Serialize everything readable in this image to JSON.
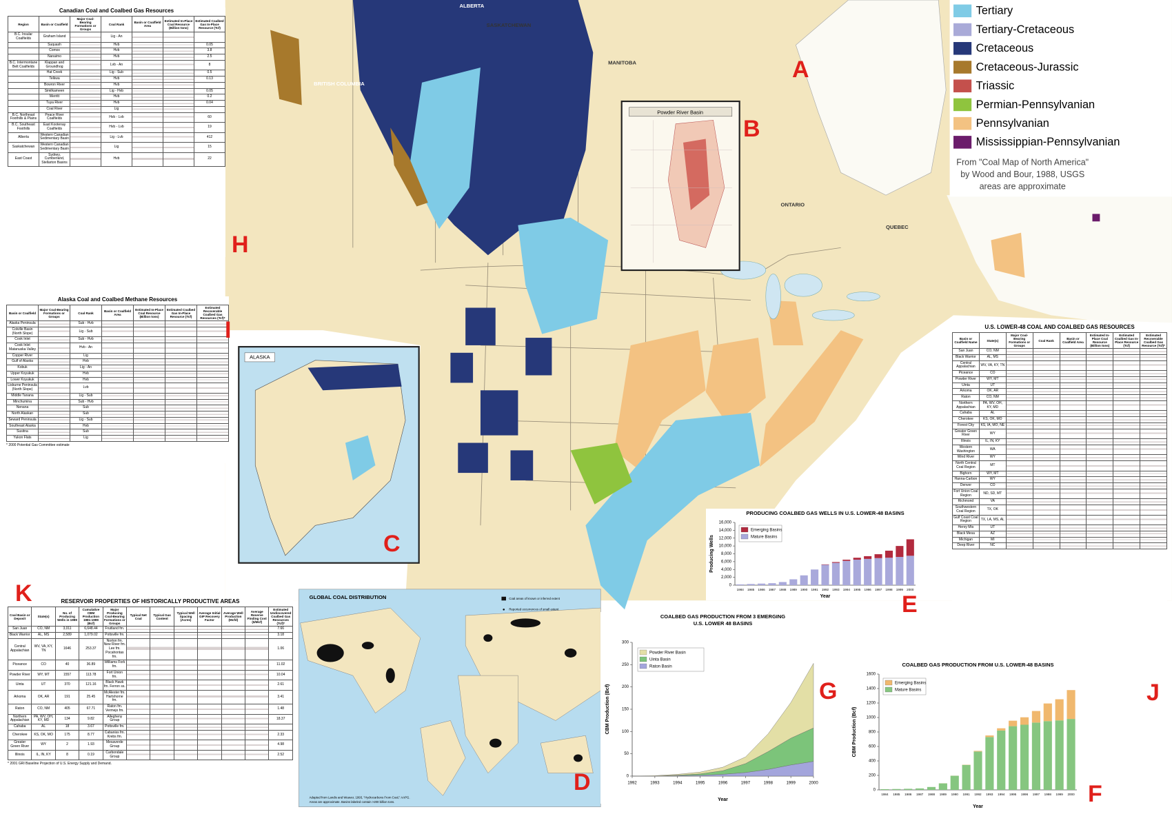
{
  "map": {
    "letters": [
      "A",
      "B",
      "C",
      "D",
      "E",
      "F",
      "G",
      "H",
      "I",
      "J",
      "K"
    ],
    "regions": [
      "ALBERTA",
      "SASKATCHEWAN",
      "MANITOBA",
      "BRITISH COLUMBIA",
      "ONTARIO",
      "QUEBEC"
    ],
    "insets": {
      "powder_river": "Powder River Basin",
      "alaska": "ALASKA"
    }
  },
  "legend": {
    "items": [
      {
        "name": "Tertiary",
        "color": "#7fcbe6"
      },
      {
        "name": "Tertiary-Cretaceous",
        "color": "#a9aad8"
      },
      {
        "name": "Cretaceous",
        "color": "#263879"
      },
      {
        "name": "Cretaceous-Jurassic",
        "color": "#a7792c"
      },
      {
        "name": "Triassic",
        "color": "#c4504c"
      },
      {
        "name": "Permian-Pennsylvanian",
        "color": "#8fc43e"
      },
      {
        "name": "Pennsylvanian",
        "color": "#f3c282"
      },
      {
        "name": "Mississippian-Pennsylvanian",
        "color": "#6b1c6b"
      }
    ],
    "credit": [
      "From \"Coal Map of North America\"",
      "by Wood and Bour, 1988, USGS",
      "areas are approximate"
    ]
  },
  "global_map": {
    "title": "GLOBAL COAL DISTRIBUTION",
    "key": [
      "Coal areas of known or inferred extent",
      "Reported occurrences of small extent"
    ],
    "credit": [
      "Adapted from Landis and Weaver, 1993, \"Hydrocarbons From Coal,\" AAPG.",
      "Areas are approximate. Basins labeled contain >200 billion tons."
    ]
  },
  "tables": [
    {
      "title": "Canadian Coal and Coalbed Gas Resources",
      "headers": [
        "Region",
        "Basin or Coalfield",
        "Major Coal-Bearing Formations or Groups",
        "Coal Rank",
        "Basin or Coalfield Area",
        "Estimated In-Place Coal Resource (Billion tons)",
        "Estimated Coalbed Gas In-Place Resource (Tcf)"
      ],
      "rows": [
        [
          "B.C. Insular Coalfields",
          "Graham Island",
          "Lig - An",
          null
        ],
        [
          null,
          "Suquash",
          "Hvb",
          "0.05"
        ],
        [
          null,
          "Comox",
          "Hvb",
          "3.8"
        ],
        [
          null,
          "Nanaimo",
          "Hvb",
          "2.5"
        ],
        [
          "B.C. Intermontane Belt Coalfields",
          "Klappan and Groundhog",
          "Lvb - An",
          "8"
        ],
        [
          null,
          "Hat Creek",
          "Lig - Sub",
          "0.5"
        ],
        [
          null,
          "Telkwa",
          "Hvb",
          "0.13"
        ],
        [
          null,
          "Bowron River",
          "Hvb",
          null
        ],
        [
          null,
          "Similkameen",
          "Lig - Hvb",
          "0.05"
        ],
        [
          null,
          "Merritt",
          "Hvb",
          "0.2"
        ],
        [
          null,
          "Tuya River",
          "Hvb",
          "0.04"
        ],
        [
          null,
          "Coal River",
          "Lig",
          null
        ],
        [
          "B.C. Northeast Foothills & Plains",
          "Peace River Coalfields",
          "Hvb - Lvb",
          "60"
        ],
        [
          "B.C. Southeast Foothills",
          "East Kootenay Coalfields",
          "Hvb - Lvb",
          "19"
        ],
        [
          "Alberta",
          "Western Canadian Sedimentary Basin",
          "Lig - Lvb",
          "412"
        ],
        [
          "Saskatchewan",
          "Western Canadian Sedimentary Basin",
          "Lig",
          "15"
        ],
        [
          "East Coast",
          "Sydney, Cumberland, Stellarton Basins",
          "Hvb",
          "22"
        ]
      ]
    },
    {
      "title": "Alaska Coal and Coalbed Methane Resources",
      "headers": [
        "Basin or Coalfield",
        "Major Coal-Bearing Formations or Groups",
        "Coal Rank",
        "Basin or Coalfield Area",
        "Estimated In-Place Coal Resource (Billion tons)",
        "Estimated Coalbed Gas In-Place Resource (Tcf)",
        "Estimated Recoverable Coalbed Gas Resources (Tcf)*"
      ],
      "rows": [
        [
          "Alaska Peninsula",
          "Sub - Hvb"
        ],
        [
          "Colville Basin (North Slope)",
          "Lig - Sub"
        ],
        [
          "Cook Inlet",
          "Sub - Hvb"
        ],
        [
          "Cook Inlet Matanuska Valley",
          "Hvb - An"
        ],
        [
          "Copper River",
          "Lig"
        ],
        [
          "Gulf of Alaska",
          "Hvb"
        ],
        [
          "Kobuk",
          "Lig - An"
        ],
        [
          "Upper Koyukuk",
          "Hvb"
        ],
        [
          "Lower Koyukuk",
          "Hvb"
        ],
        [
          "Lisburne Peninsula (North Slope)",
          "Lvb"
        ],
        [
          "Middle Tanana",
          "Lig - Sub"
        ],
        [
          "Minchumina",
          "Sub - Hvb"
        ],
        [
          "Nenana",
          "Sub"
        ],
        [
          "North Alaskan",
          "Sub"
        ],
        [
          "Seward Peninsula",
          "Lig - Sub"
        ],
        [
          "Southeast Alaska",
          "Hvb"
        ],
        [
          "Susitna",
          "Sub"
        ],
        [
          "Yukon Flats",
          "Lig"
        ]
      ],
      "footnote": "* 2000 Potential Gas Committee estimate"
    },
    {
      "title": "RESERVOIR PROPERTIES OF HISTORICALLY PRODUCTIVE AREAS",
      "headers": [
        "Coal Basin or Deposit",
        "State(s)",
        "No. of Producing Wells in 1999",
        "Cumulative CBM Production 1981-1999 (Bcf)",
        "Major Producing Coal-Bearing Formations or Groups",
        "Typical Net Coal",
        "Typical Gas Content",
        "Typical Well Spacing (Acres)",
        "Average Initial GIP Recovery Factor",
        "Average Well Production (Mcfd)",
        "Average Reserve Finding Cost ($/Mcf)",
        "Estimated Undiscovered Coalbed Gas Resources (Tcf)*"
      ],
      "rows": [
        [
          "San Juan",
          "CO, NM",
          "3,011",
          "6,648.44",
          "Fruitland fm.",
          "7.66"
        ],
        [
          "Black Warrior",
          "AL, MS",
          "2,589",
          "1,079.02",
          "Pottsville fm.",
          "3.18"
        ],
        [
          "Central Appalachian",
          "WV, VA, KY, TN",
          "1646",
          "253.37",
          "Norton fm. New River fm. Lee fm. Pocahontas fm.",
          "1.06"
        ],
        [
          "Piceance",
          "CO",
          "40",
          "36.89",
          "Williams Fork fm.",
          "11.02"
        ],
        [
          "Powder River",
          "WY, MT",
          "1557",
          "113.78",
          "Fort Union fm.",
          "10.04"
        ],
        [
          "Uinta",
          "UT",
          "370",
          "121.16",
          "Black Hawk fm. Ferron ss.",
          "2.61"
        ],
        [
          "Arkoma",
          "OK, AR",
          "191",
          "25.45",
          "McAlester fm. Hartshorne fm.",
          "3.41"
        ],
        [
          "Raton",
          "CO, NM",
          "405",
          "67.71",
          "Raton fm. Vermejo fm.",
          "1.48"
        ],
        [
          "Northern Appalachian",
          "PA, WV, OH, KY, MD",
          "134",
          "9.82",
          "Allegheny Group",
          "18.37"
        ],
        [
          "Cahaba",
          "AL",
          "18",
          "3.67",
          "Pottsville fm.",
          null
        ],
        [
          "Cherokee",
          "KS, OK, MO",
          "175",
          "8.77",
          "Cabaniss fm. Krebs fm.",
          "2.33"
        ],
        [
          "Greater Green River",
          "WY",
          "2",
          "1.93",
          "Mesaverde Group",
          "4.98"
        ],
        [
          "Illinois",
          "IL, IN, KY",
          "8",
          "0.19",
          "Carbondale Group",
          "2.52"
        ]
      ],
      "footnote": "* 2001 GRI Baseline Projection of U.S. Energy Supply and Demand."
    },
    {
      "title": "U.S. LOWER-48 COAL AND COALBED GAS RESOURCES",
      "headers": [
        "Basin or Coalfield Name",
        "State(s)",
        "Major Coal-Bearing Formations or Groups",
        "Coal Rank",
        "Basin or Coalfield Area",
        "Estimated In-Place Coal Resource (Billion tons)",
        "Estimated Coalbed Gas In-Place Resource (Tcf)",
        "Estimated Recoverable Coalbed Gas Resource (Tcf)*"
      ],
      "rows": [
        [
          "San Juan",
          "CO, NM"
        ],
        [
          "Black Warrior",
          "AL, MS"
        ],
        [
          "Central Appalachian",
          "WV, VA, KY, TN"
        ],
        [
          "Piceance",
          "CO"
        ],
        [
          "Powder River",
          "WY, MT"
        ],
        [
          "Uinta",
          "UT"
        ],
        [
          "Arkoma",
          "OK, AR"
        ],
        [
          "Raton",
          "CO, NM"
        ],
        [
          "Northern Appalachian",
          "PA, WV, OH, KY, MD"
        ],
        [
          "Cahaba",
          "AL"
        ],
        [
          "Cherokee",
          "KS, OK, MO"
        ],
        [
          "Forest City",
          "KS, IA, MO, NE"
        ],
        [
          "Greater Green River",
          "WY"
        ],
        [
          "Illinois",
          "IL, IN, KY"
        ],
        [
          "Western Washington",
          "WA"
        ],
        [
          "Wind River",
          "WY"
        ],
        [
          "North Central Coal Region",
          "MT"
        ],
        [
          "Bighorn",
          "WY, MT"
        ],
        [
          "Hanna-Carbon",
          "WY"
        ],
        [
          "Denver",
          "CO"
        ],
        [
          "Fort Union Coal Region",
          "ND, SD, MT"
        ],
        [
          "Richmond",
          "VA"
        ],
        [
          "Southwestern Coal Region",
          "TX, OK"
        ],
        [
          "Gulf Coast Coal Region",
          "TX, LA, MS, AL"
        ],
        [
          "Henry Mts",
          "UT"
        ],
        [
          "Black Mesa",
          "AZ"
        ],
        [
          "Michigan",
          "MI"
        ],
        [
          "Deep River",
          "NC"
        ]
      ]
    }
  ],
  "chart_data": [
    {
      "type": "bar",
      "title": [
        "PRODUCING COALBED GAS WELLS IN U.S. LOWER-48 BASINS"
      ],
      "x_label": "Year",
      "y_label": "Producing Wells",
      "categories": [
        "1984",
        "1985",
        "1986",
        "1987",
        "1988",
        "1989",
        "1990",
        "1991",
        "1992",
        "1993",
        "1994",
        "1995",
        "1996",
        "1997",
        "1998",
        "1999",
        "2000"
      ],
      "series": [
        {
          "name": "Emerging Basins",
          "color": "#b22a3e",
          "values": [
            0,
            0,
            0,
            0,
            0,
            0,
            0,
            0,
            100,
            200,
            300,
            500,
            700,
            1000,
            1800,
            2800,
            4200
          ]
        },
        {
          "name": "Mature Basins",
          "color": "#a9a9db",
          "values": [
            200,
            300,
            400,
            500,
            800,
            1500,
            2500,
            4000,
            5200,
            5700,
            6200,
            6500,
            6700,
            6900,
            7000,
            7200,
            7500
          ]
        }
      ],
      "ylim": [
        0,
        16000
      ],
      "yticks": [
        0,
        {
          "value": 2000,
          "label": "2,000"
        },
        {
          "value": 4000,
          "label": "4,000"
        },
        {
          "value": 6000,
          "label": "6,000"
        },
        {
          "value": 8000,
          "label": "8,000"
        },
        {
          "value": 10000,
          "label": "10,000"
        },
        {
          "value": 12000,
          "label": "12,000"
        },
        {
          "value": 14000,
          "label": "14,000"
        },
        {
          "value": 16000,
          "label": "16,000"
        }
      ],
      "stacked": true,
      "grid": false
    },
    {
      "type": "area",
      "title": [
        "COALBED GAS PRODUCTION FROM 3 EMERGING",
        "U.S. LOWER 48 BASINS"
      ],
      "x_label": "Year",
      "y_label": "CBM Production (Bcf)",
      "x": [
        1992,
        1993,
        1994,
        1995,
        1996,
        1997,
        1998,
        1999,
        2000
      ],
      "series": [
        {
          "name": "Powder River Basin",
          "color": "#e3dfa6",
          "values": [
            0,
            1,
            2,
            4,
            8,
            15,
            40,
            80,
            145
          ]
        },
        {
          "name": "Uinta Basin",
          "color": "#7cc47a",
          "values": [
            0,
            0,
            1,
            3,
            8,
            20,
            40,
            60,
            75
          ]
        },
        {
          "name": "Raton Basin",
          "color": "#a3a5dc",
          "values": [
            0,
            0,
            1,
            2,
            4,
            8,
            15,
            25,
            33
          ]
        }
      ],
      "xlim": [
        1992,
        2000
      ],
      "xticks": [
        1992,
        1993,
        1994,
        1995,
        1996,
        1997,
        1998,
        1999,
        2000
      ],
      "ylim": [
        0,
        300
      ],
      "yticks": [
        0,
        50,
        100,
        150,
        200,
        250,
        300
      ],
      "stacked": true,
      "grid": false
    },
    {
      "type": "bar",
      "title": [
        "COALBED GAS PRODUCTION FROM U.S. LOWER-48 BASINS"
      ],
      "x_label": "Year",
      "y_label": "CBM Production (Bcf)",
      "categories": [
        "1984",
        "1985",
        "1986",
        "1987",
        "1988",
        "1989",
        "1990",
        "1991",
        "1992",
        "1993",
        "1994",
        "1995",
        "1996",
        "1997",
        "1998",
        "1999",
        "2000"
      ],
      "series": [
        {
          "name": "Emerging Basins",
          "color": "#f0b86e",
          "values": [
            0,
            0,
            0,
            0,
            0,
            1,
            1,
            3,
            9,
            22,
            31,
            76,
            103,
            160,
            244,
            292,
            399
          ]
        },
        {
          "name": "Mature Basins",
          "color": "#86c680",
          "values": [
            10,
            12,
            15,
            20,
            40,
            90,
            195,
            345,
            530,
            730,
            820,
            880,
            900,
            930,
            950,
            960,
            980
          ]
        }
      ],
      "ylim": [
        0,
        1600
      ],
      "yticks": [
        0,
        200,
        400,
        600,
        800,
        1000,
        1200,
        1400,
        1600
      ],
      "stacked": true,
      "grid": false
    }
  ]
}
